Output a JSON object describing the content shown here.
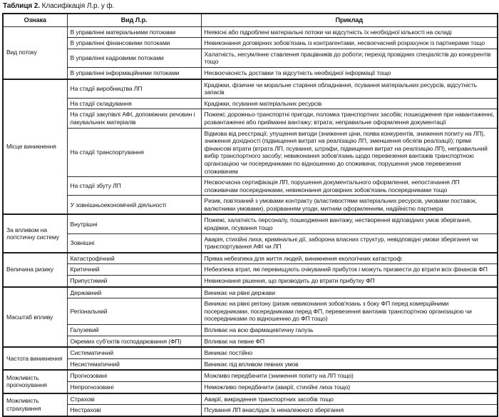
{
  "title": {
    "label": "Таблиця 2.",
    "text": "Класифікація Л.р. у ф."
  },
  "table": {
    "headers": [
      "Ознака",
      "Вид Л.р.",
      "Приклад"
    ],
    "groups": [
      {
        "feature": "Вид потоку",
        "rows": [
          {
            "kind": "В управлінні матеріальними потоками",
            "example": "Неякісні або підроблені матеріальні потоки чи відсутність їх необхідної кількості на складі"
          },
          {
            "kind": "В управлінні фінансовими потоками",
            "example": "Невиконання договірних зобов'язань із контрагентами, несвоєчасний розрахунок із партнерами тощо"
          },
          {
            "kind": "В управлінні кадровими потоками",
            "example": "Халатність, несумлінне ставлення працівників до роботи; перехід провідних спеціалістів до конкурентів тощо"
          },
          {
            "kind": "В управлінні інформаційними потоками",
            "example": "Несвоєчасність доставки та відсутність необхідної інформації тощо"
          }
        ]
      },
      {
        "feature": "Місце виникнення",
        "rows": [
          {
            "kind": "На стадії виробництва ЛП",
            "example": "Крадіжки, фізичне чи моральне старіння обладнання, псування матеріальних ресурсів, відсутність запасів"
          },
          {
            "kind": "На стадії складування",
            "example": "Крадіжки, псування матеріальних ресурсів"
          },
          {
            "kind": "На стадії закупівлі АФІ, допоміжних речовин і пакувальних матеріалів",
            "example": "Пожежі; дорожньо-транспортні пригоди, поломка транспортних засобів; пошкодження при навантаженні, розвантаженні або прийманні вантажу; втрата; неправильне оформлення документації"
          },
          {
            "kind": "На стадії транспортування",
            "example": "Відмова від реєстрації; упущення вигоди (зниження ціни, поява конкурентів, зниження попиту на ЛП), зниження дохідності (підвищення витрат на реалізацію ЛП, зменшення обсягів реалізації); прямі фінансові втрати (втрата ЛП, псування, штрафи, підвищення витрат на реалізацію ЛП), неправильний вибір транспортного засобу; невиконання зобов'язань щодо перевезення вантажів транспортною організацією чи посередниками по відношенню до споживача; порушення умов перевезення споживачем"
          },
          {
            "kind": "На стадії збуту ЛП",
            "example": "Несвоєчасна сертифікація ЛП, порушення документального оформлення, непостачання ЛП споживачам посередниками, невиконання договірних зобов'язань посередниками тощо"
          },
          {
            "kind": "У зовнішньоекономічній діяльності",
            "example": "Ризик, пов'язаний з умовами контракту (властивостями матеріальних ресурсів, умовами поставок, валютними умовами), розірванням угоди, митним оформленням, надійністю партнера"
          }
        ]
      },
      {
        "feature": "За впливом на логістичну систему",
        "rows": [
          {
            "kind": "Внутрішні",
            "example": "Пожежі, халатність персоналу, пошкодження вантажу, нестворення відповідних умов зберігання, крадіжки, псування тощо"
          },
          {
            "kind": "Зовнішні",
            "example": "Аварія, стихійні лиха, кримінальні дії, заборона власних структур, невідповідні умови зберігання чи транспортування АФІ чи ЛП"
          }
        ]
      },
      {
        "feature": "Величина ризику",
        "rows": [
          {
            "kind": "Катастрофічний",
            "example": "Пряма небезпека для життя людей, виникнення екологічних катастроф"
          },
          {
            "kind": "Критичний",
            "example": "Небезпека втрат, які перевищують очікуваний прибуток і можуть призвести до втрати всіх фінансів ФП"
          },
          {
            "kind": "Припустимий",
            "example": "Невиконання рішення, що призводить до втрати прибутку ФП"
          }
        ]
      },
      {
        "feature": "Масштаб впливу",
        "rows": [
          {
            "kind": "Державний",
            "example": "Виникає на рівні держави"
          },
          {
            "kind": "Регіональний",
            "example": "Виникає на рівні регіону (ризик невиконання зобов'язань з боку ФП перед комерційними посередниками, посередниками перед ФП, перевезення вантажів транспортною організацією чи посередниками по відношенню до ФП тощо)"
          },
          {
            "kind": "Галузевий",
            "example": "Впливає на всю фармацевтичну галузь"
          },
          {
            "kind": "Окремих суб'єктів господарювання (ФП)",
            "example": "Впливає на певне ФП"
          }
        ]
      },
      {
        "feature": "Частота виникнення",
        "rows": [
          {
            "kind": "Систематичний",
            "example": "Виникає постійно"
          },
          {
            "kind": "Несистематичний",
            "example": "Виникає під впливом певних умов"
          }
        ]
      },
      {
        "feature": "Можливість прогнозування",
        "rows": [
          {
            "kind": "Прогнозовані",
            "example": "Можливо передбачити (зниження попиту на ЛП тощо)"
          },
          {
            "kind": "Непрогнозовані",
            "example": "Неможливо передбачити (аварії, стихійні лиха тощо)"
          }
        ]
      },
      {
        "feature": "Можливість страхування",
        "rows": [
          {
            "kind": "Страхові",
            "example": "Аварії, викрадення транспортних засобів тощо"
          },
          {
            "kind": "Нестрахові",
            "example": "Псування ЛП внаслідок їх неналежного зберігання"
          }
        ]
      }
    ]
  }
}
